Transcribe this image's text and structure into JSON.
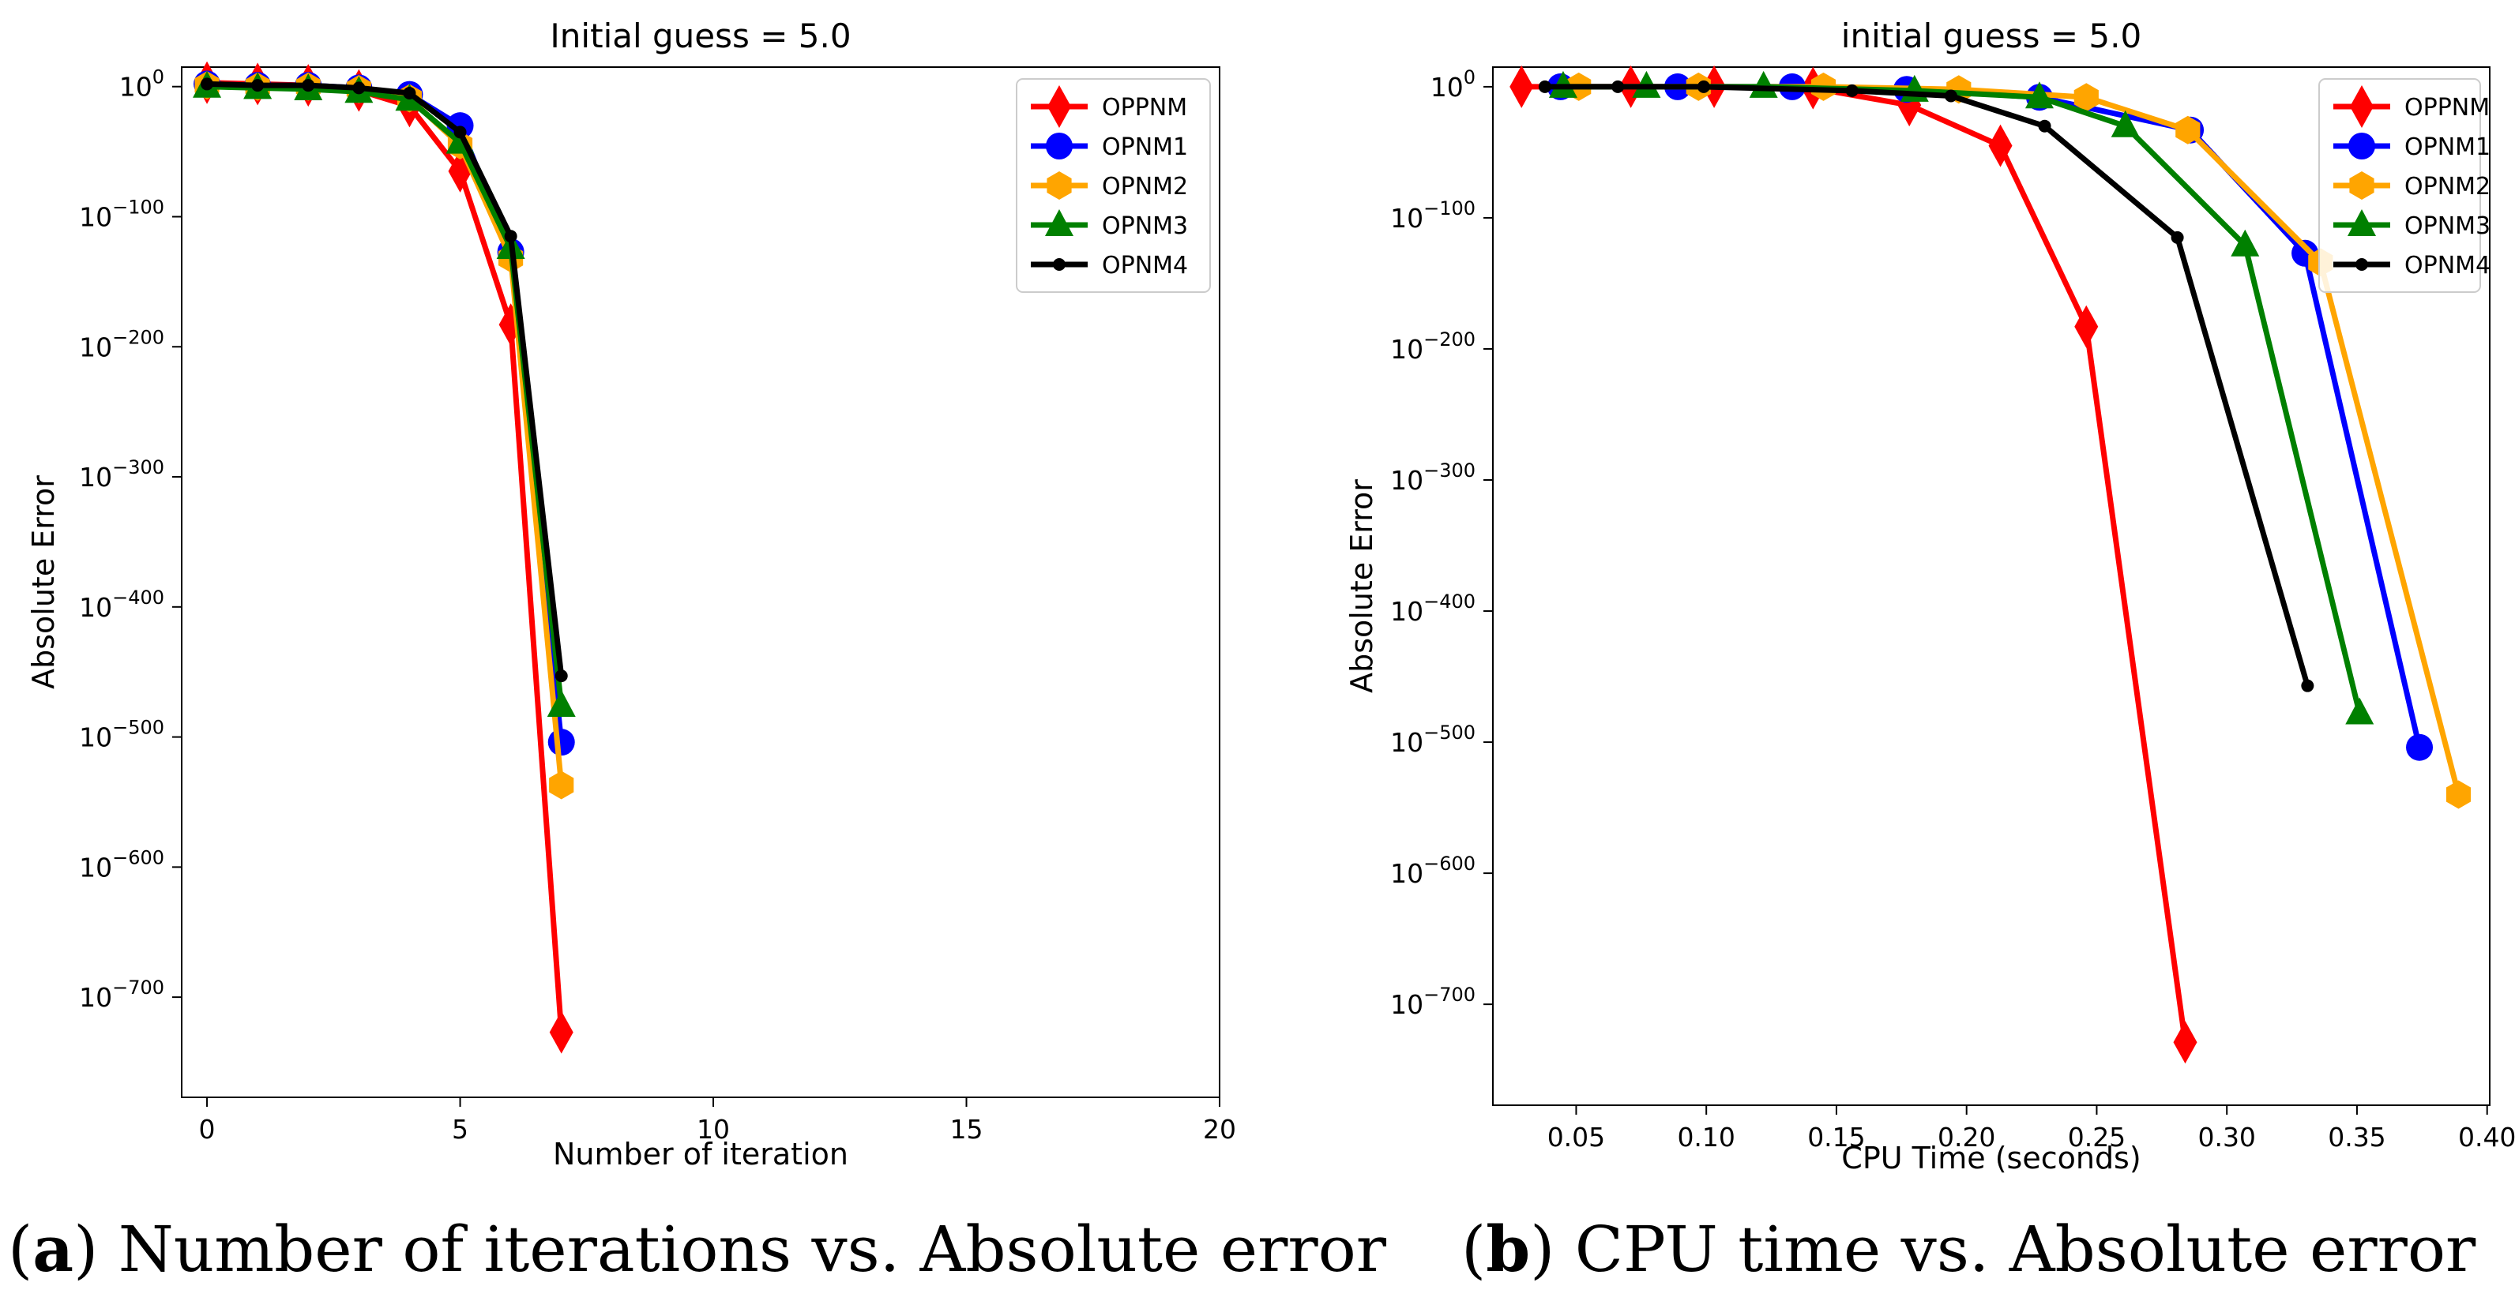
{
  "colors": {
    "OPPNM": "#ff0000",
    "OPNM1": "#0000ff",
    "OPNM2": "#ffa500",
    "OPNM3": "#008000",
    "OPNM4": "#000000"
  },
  "chart_data": [
    {
      "type": "line",
      "title": "Initial guess = 5.0",
      "xlabel": "Number of iteration",
      "ylabel": "Absolute Error",
      "xlim": [
        -0.5,
        20
      ],
      "ylim_exponent": [
        -777,
        15
      ],
      "xticks": [
        0,
        5,
        10,
        15,
        20
      ],
      "xtick_labels": [
        "0",
        "5",
        "10",
        "15",
        "20"
      ],
      "yticks_exponent": [
        0,
        -100,
        -200,
        -300,
        -400,
        -500,
        -600,
        -700
      ],
      "legend_position": "top-right",
      "series": [
        {
          "name": "OPPNM",
          "marker": "diamond",
          "x": [
            0,
            1,
            2,
            3,
            4,
            5,
            6,
            7
          ],
          "log10_y": [
            3,
            2,
            1,
            -3,
            -15,
            -65,
            -183,
            -727
          ]
        },
        {
          "name": "OPNM1",
          "marker": "circle",
          "x": [
            0,
            1,
            2,
            3,
            4,
            5,
            6,
            7
          ],
          "log10_y": [
            2,
            1,
            1,
            -1,
            -6,
            -30,
            -127,
            -504
          ]
        },
        {
          "name": "OPNM2",
          "marker": "hexagon",
          "x": [
            0,
            1,
            2,
            3,
            4,
            5,
            6,
            7
          ],
          "log10_y": [
            1,
            0,
            0,
            -2,
            -9,
            -45,
            -132,
            -537
          ]
        },
        {
          "name": "OPNM3",
          "marker": "triangle",
          "x": [
            0,
            1,
            2,
            3,
            4,
            5,
            6,
            7
          ],
          "log10_y": [
            0,
            -1,
            -2,
            -4,
            -10,
            -43,
            -124,
            -476
          ]
        },
        {
          "name": "OPNM4",
          "marker": "point",
          "x": [
            0,
            1,
            2,
            3,
            4,
            5,
            6,
            7
          ],
          "log10_y": [
            2,
            1,
            1,
            -1,
            -5,
            -35,
            -115,
            -453
          ]
        }
      ]
    },
    {
      "type": "line",
      "title": "initial guess = 5.0",
      "xlabel": "CPU Time (seconds)",
      "ylabel": "Absolute Error",
      "xlim": [
        0.018,
        0.401
      ],
      "ylim_exponent": [
        -777,
        15
      ],
      "xticks": [
        0.05,
        0.1,
        0.15,
        0.2,
        0.25,
        0.3,
        0.35,
        0.4
      ],
      "xtick_labels": [
        "0.05",
        "0.10",
        "0.15",
        "0.20",
        "0.25",
        "0.30",
        "0.35",
        "0.40"
      ],
      "yticks_exponent": [
        0,
        -100,
        -200,
        -300,
        -400,
        -500,
        -600,
        -700
      ],
      "legend_position": "top-right",
      "series": [
        {
          "name": "OPPNM",
          "marker": "diamond",
          "x": [
            0.029,
            0.071,
            0.103,
            0.141,
            0.178,
            0.213,
            0.246,
            0.284
          ],
          "log10_y": [
            0,
            0,
            0,
            -1,
            -14,
            -45,
            -183,
            -729
          ]
        },
        {
          "name": "OPNM1",
          "marker": "circle",
          "x": [
            0.044,
            0.089,
            0.133,
            0.177,
            0.228,
            0.286,
            0.33,
            0.374
          ],
          "log10_y": [
            0,
            0,
            0,
            -2,
            -8,
            -33,
            -127,
            -504
          ]
        },
        {
          "name": "OPNM2",
          "marker": "hexagon",
          "x": [
            0.051,
            0.097,
            0.145,
            0.197,
            0.246,
            0.285,
            0.336,
            0.389
          ],
          "log10_y": [
            0,
            0,
            0,
            -2,
            -8,
            -33,
            -134,
            -540
          ]
        },
        {
          "name": "OPNM3",
          "marker": "triangle",
          "x": [
            0.045,
            0.077,
            0.122,
            0.18,
            0.228,
            0.261,
            0.307,
            0.351
          ],
          "log10_y": [
            0,
            0,
            0,
            -3,
            -8,
            -30,
            -121,
            -478
          ]
        },
        {
          "name": "OPNM4",
          "marker": "point",
          "x": [
            0.038,
            0.066,
            0.099,
            0.156,
            0.194,
            0.23,
            0.281,
            0.331
          ],
          "log10_y": [
            0,
            0,
            0,
            -3,
            -7,
            -30,
            -115,
            -457
          ]
        }
      ]
    }
  ],
  "captions": [
    {
      "label": "a",
      "text": "Number of iterations vs. Absolute error"
    },
    {
      "label": "b",
      "text": "CPU time vs. Absolute error"
    }
  ]
}
